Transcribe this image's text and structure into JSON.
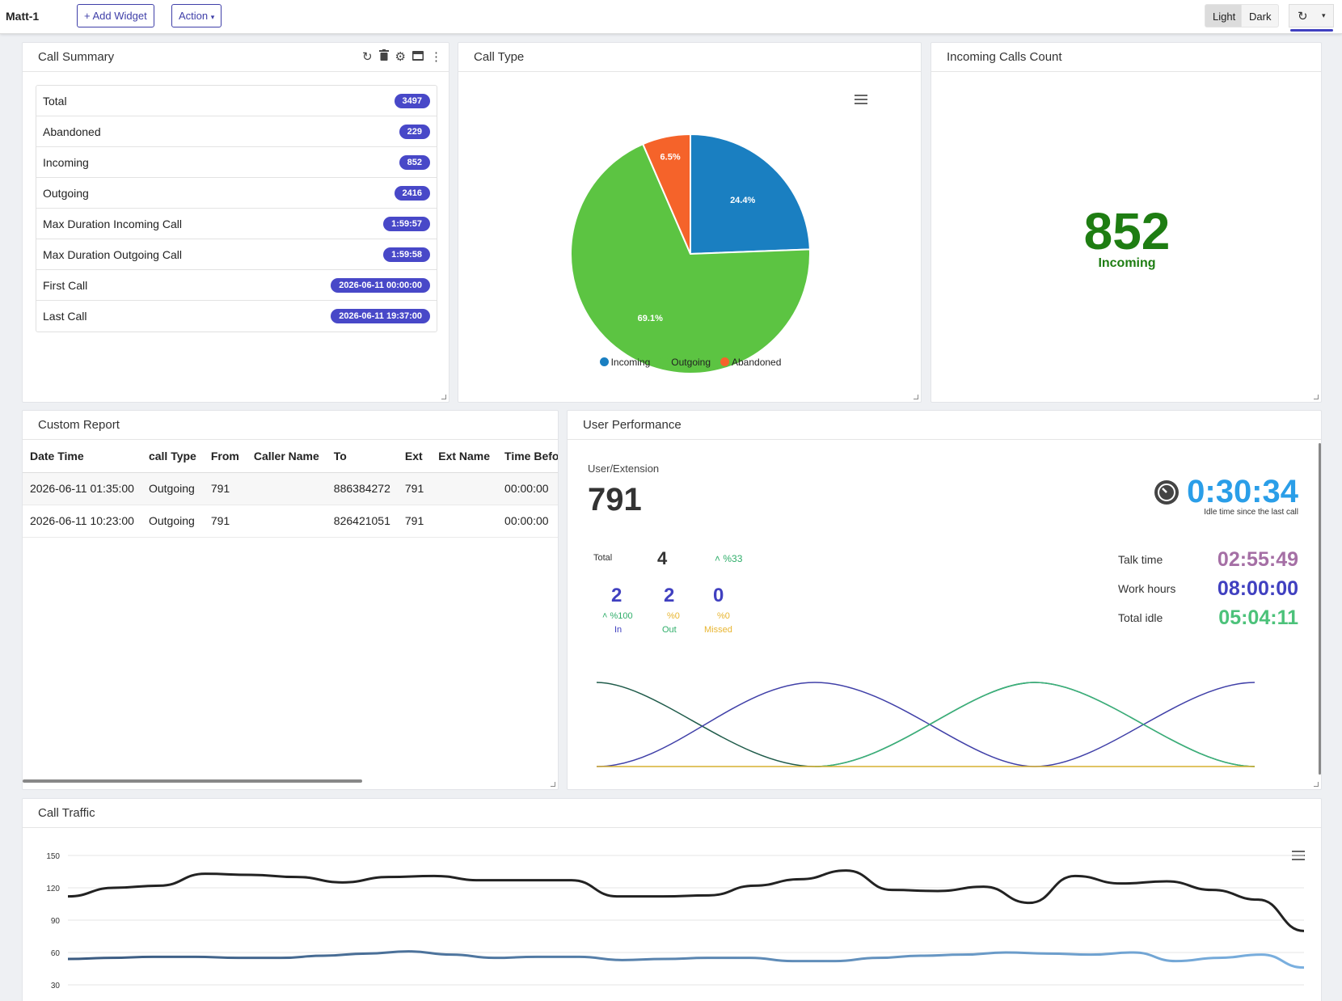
{
  "topbar": {
    "title": "Matt-1",
    "add_widget": "+ Add Widget",
    "action": "Action",
    "light": "Light",
    "dark": "Dark"
  },
  "call_summary": {
    "title": "Call Summary",
    "rows": [
      {
        "label": "Total",
        "value": "3497"
      },
      {
        "label": "Abandoned",
        "value": "229"
      },
      {
        "label": "Incoming",
        "value": "852"
      },
      {
        "label": "Outgoing",
        "value": "2416"
      },
      {
        "label": "Max Duration Incoming Call",
        "value": "1:59:57"
      },
      {
        "label": "Max Duration Outgoing Call",
        "value": "1:59:58"
      },
      {
        "label": "First Call",
        "value": "2026-06-11 00:00:00"
      },
      {
        "label": "Last Call",
        "value": "2026-06-11 19:37:00"
      }
    ]
  },
  "call_type": {
    "title": "Call Type",
    "legend": [
      "Incoming",
      "Outgoing",
      "Abandoned"
    ]
  },
  "incoming_count": {
    "title": "Incoming Calls Count",
    "value": "852",
    "label": "Incoming"
  },
  "custom_report": {
    "title": "Custom Report",
    "columns": [
      "Date Time",
      "call Type",
      "From",
      "Caller Name",
      "To",
      "Ext",
      "Ext Name",
      "Time Before"
    ],
    "rows": [
      [
        "2026-06-11 01:35:00",
        "Outgoing",
        "791",
        "",
        "886384272",
        "791",
        "",
        "00:00:00"
      ],
      [
        "2026-06-11 10:23:00",
        "Outgoing",
        "791",
        "",
        "826421051",
        "791",
        "",
        "00:00:00"
      ]
    ]
  },
  "user_performance": {
    "title": "User Performance",
    "ext_label": "User/Extension",
    "ext": "791",
    "idle_time": "0:30:34",
    "idle_caption": "Idle time since the last call",
    "total_label": "Total",
    "total": "4",
    "total_pct": "%33",
    "in": "2",
    "in_pct": "%100",
    "in_label": "In",
    "out": "2",
    "out_pct": "%0",
    "out_label": "Out",
    "missed": "0",
    "missed_pct": "%0",
    "missed_label": "Missed",
    "talk_label": "Talk time",
    "talk": "02:55:49",
    "work_label": "Work hours",
    "work": "08:00:00",
    "idle_label": "Total idle",
    "idle": "05:04:11"
  },
  "call_traffic": {
    "title": "Call Traffic"
  },
  "colors": {
    "accent": "#4848c8",
    "incoming": "#1a7fc1",
    "outgoing": "#5cc442",
    "abandoned": "#f5632a",
    "count_green": "#1e7d12"
  },
  "chart_data": [
    {
      "type": "pie",
      "title": "",
      "categories": [
        "Incoming",
        "Outgoing",
        "Abandoned"
      ],
      "values": [
        24.4,
        69.1,
        6.5
      ]
    },
    {
      "type": "line",
      "title": "",
      "ylim": [
        30,
        150
      ],
      "yticks": [
        150,
        120,
        90,
        60,
        30
      ],
      "grid": true,
      "series": [
        {
          "values": [
            112,
            120,
            122,
            133,
            132,
            130,
            125,
            130,
            131,
            127,
            127,
            127,
            112,
            112,
            113,
            122,
            128,
            136,
            118,
            117,
            121,
            106,
            131,
            124,
            126,
            118,
            109,
            80
          ]
        },
        {
          "values": [
            54,
            55,
            56,
            56,
            55,
            55,
            57,
            59,
            61,
            58,
            55,
            56,
            56,
            53,
            54,
            55,
            55,
            52,
            52,
            55,
            57,
            58,
            60,
            59,
            58,
            60,
            52,
            55,
            58,
            46
          ]
        }
      ]
    }
  ]
}
